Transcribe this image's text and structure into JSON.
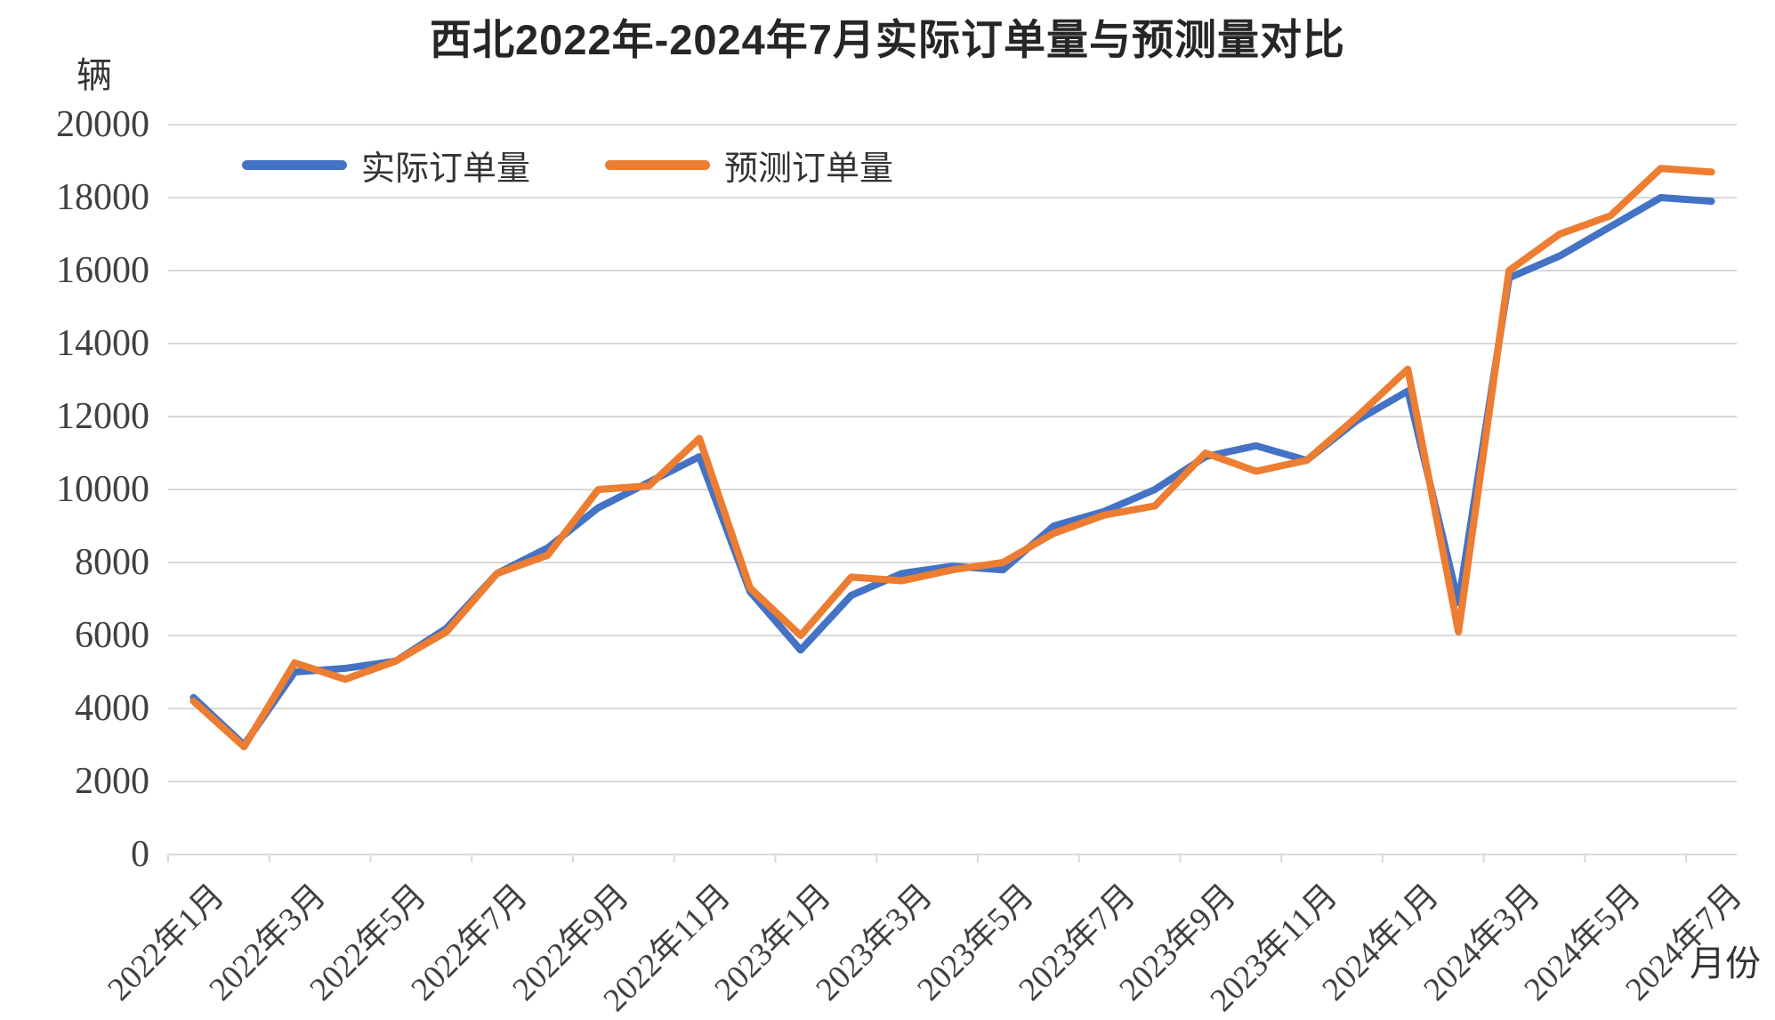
{
  "chart_data": {
    "type": "line",
    "title": "西北2022年-2024年7月实际订单量与预测量对比",
    "y_unit_label": "辆",
    "x_axis_label": "月份",
    "ylim": [
      0,
      20000
    ],
    "y_tick_step": 2000,
    "grid": true,
    "legend_position": "top-left-inside",
    "x_tick_every": 2,
    "x": [
      "2022年1月",
      "2022年2月",
      "2022年3月",
      "2022年4月",
      "2022年5月",
      "2022年6月",
      "2022年7月",
      "2022年8月",
      "2022年9月",
      "2022年10月",
      "2022年11月",
      "2022年12月",
      "2023年1月",
      "2023年2月",
      "2023年3月",
      "2023年4月",
      "2023年5月",
      "2023年6月",
      "2023年7月",
      "2023年8月",
      "2023年9月",
      "2023年10月",
      "2023年11月",
      "2023年12月",
      "2024年1月",
      "2024年2月",
      "2024年3月",
      "2024年4月",
      "2024年5月",
      "2024年6月",
      "2024年7月"
    ],
    "series": [
      {
        "name": "实际订单量",
        "color": "#4472C4",
        "values": [
          4300,
          3000,
          5000,
          5100,
          5300,
          6200,
          7700,
          8400,
          9500,
          10200,
          10900,
          7200,
          5600,
          7100,
          7700,
          7900,
          7800,
          9000,
          9400,
          10000,
          10900,
          11200,
          10800,
          11900,
          12700,
          6900,
          15800,
          16400,
          17200,
          18000,
          17900
        ]
      },
      {
        "name": "预测订单量",
        "color": "#ED7D31",
        "values": [
          4200,
          2950,
          5250,
          4800,
          5300,
          6100,
          7700,
          8200,
          10000,
          10100,
          11400,
          7300,
          6000,
          7600,
          7500,
          7800,
          8000,
          8800,
          9300,
          9550,
          11000,
          10500,
          10800,
          12000,
          13300,
          6100,
          16000,
          17000,
          17500,
          18800,
          18700
        ]
      }
    ],
    "style": {
      "gridline_color": "#d9d9d9",
      "line_width": 8
    }
  }
}
